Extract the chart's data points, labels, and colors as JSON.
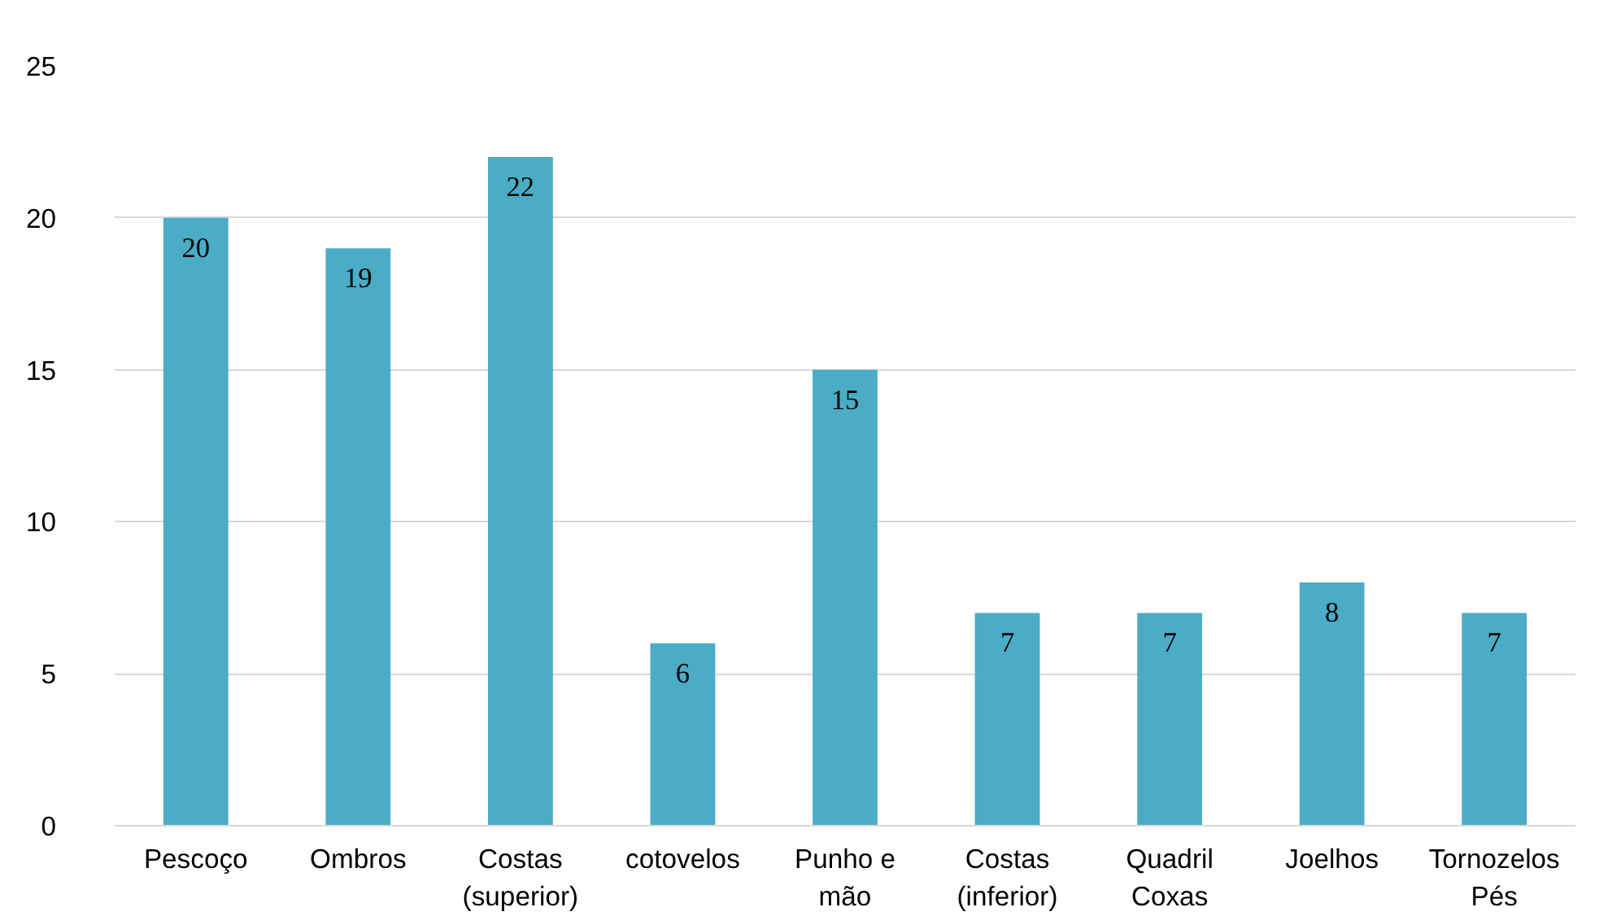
{
  "chart_data": {
    "type": "bar",
    "categories": [
      "Pescoço",
      "Ombros",
      "Costas\n(superior)",
      "cotovelos",
      "Punho e\nmão",
      "Costas\n(inferior)",
      "Quadril\nCoxas",
      "Joelhos",
      "Tornozelos\nPés"
    ],
    "values": [
      20,
      19,
      22,
      6,
      15,
      7,
      7,
      8,
      7
    ],
    "color": "#4bacc6",
    "ylim": [
      0,
      25
    ],
    "yticks": [
      0,
      5,
      10,
      15,
      20,
      25
    ],
    "grid": "y",
    "data_labels": true
  }
}
